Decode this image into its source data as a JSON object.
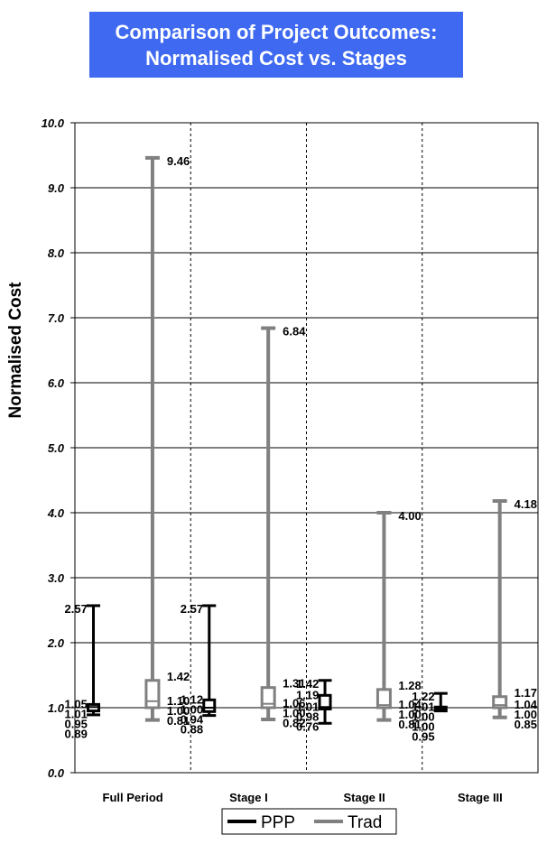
{
  "chart_data": {
    "type": "box",
    "title": "Comparison of Project Outcomes:",
    "subtitle": "Normalised Cost vs. Stages",
    "ylabel": "Normalised Cost",
    "xlabel": "",
    "ylim": [
      0,
      10
    ],
    "yticks": [
      "0.0",
      "1.0",
      "2.0",
      "3.0",
      "4.0",
      "5.0",
      "6.0",
      "7.0",
      "8.0",
      "9.0",
      "10.0"
    ],
    "categories": [
      "Full Period",
      "Stage I",
      "Stage II",
      "Stage III"
    ],
    "grid": true,
    "legend_position": "bottom",
    "series": [
      {
        "name": "PPP",
        "color": "#000000",
        "boxes": [
          {
            "max": 2.57,
            "q3": 1.05,
            "median": 1.01,
            "q1": 0.95,
            "min": 0.89,
            "labels": [
              "2.57",
              "1.05",
              "1.01",
              "0.95",
              "0.89"
            ]
          },
          {
            "max": 2.57,
            "q3": 1.12,
            "median": 1.0,
            "q1": 0.94,
            "min": 0.88,
            "labels": [
              "2.57",
              "1.12",
              "1.00",
              "0.94",
              "0.88"
            ]
          },
          {
            "max": 1.42,
            "q3": 1.19,
            "median": 1.01,
            "q1": 0.98,
            "min": 0.76,
            "labels": [
              "1.42",
              "1.19",
              "1.01",
              "0.98",
              "0.76"
            ]
          },
          {
            "max": 1.22,
            "q3": 1.01,
            "median": 1.0,
            "q1": 1.0,
            "min": 0.95,
            "labels": [
              "1.22",
              "1.01",
              "1.00",
              "1.00",
              "0.95"
            ]
          }
        ]
      },
      {
        "name": "Trad",
        "color": "#808080",
        "boxes": [
          {
            "max": 9.46,
            "q3": 1.42,
            "median": 1.1,
            "q1": 1.0,
            "min": 0.81,
            "labels": [
              "9.46",
              "1.42",
              "1.10",
              "1.00",
              "0.81"
            ]
          },
          {
            "max": 6.84,
            "q3": 1.31,
            "median": 1.06,
            "q1": 1.0,
            "min": 0.82,
            "labels": [
              "6.84",
              "1.31",
              "1.06",
              "1.00",
              "0.82"
            ]
          },
          {
            "max": 4.0,
            "q3": 1.28,
            "median": 1.04,
            "q1": 1.0,
            "min": 0.81,
            "labels": [
              "4.00",
              "1.28",
              "1.04",
              "1.00",
              "0.81"
            ]
          },
          {
            "max": 4.18,
            "q3": 1.17,
            "median": 1.04,
            "q1": 1.0,
            "min": 0.85,
            "labels": [
              "4.18",
              "1.17",
              "1.04",
              "1.00",
              "0.85"
            ]
          }
        ]
      }
    ]
  }
}
